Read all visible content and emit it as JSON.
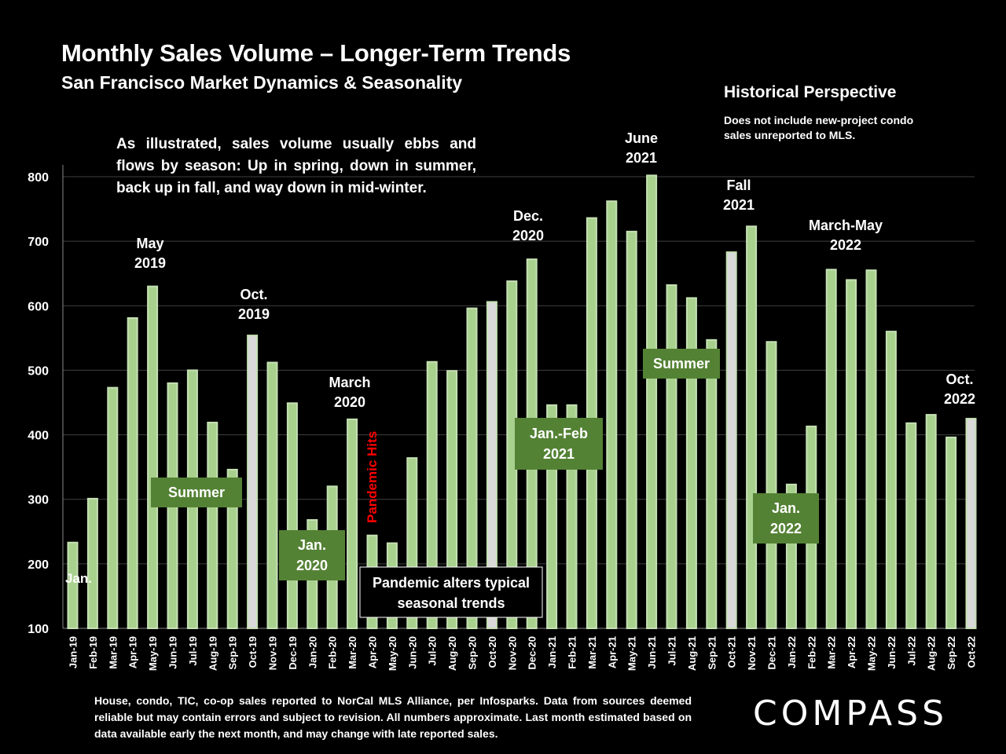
{
  "header": {
    "title": "Monthly Sales Volume – Longer-Term Trends",
    "subtitle": "San Francisco Market Dynamics & Seasonality"
  },
  "historical": {
    "title": "Historical Perspective",
    "note": "Does not include new-project condo sales unreported to MLS."
  },
  "intro_text": "As illustrated, sales volume usually ebbs and flows by season: Up in spring, down in summer, back up in fall, and way down in mid-winter.",
  "footnote": "House, condo, TIC, co-op sales reported to NorCal MLS Alliance, per Infosparks. Data from sources deemed reliable but may contain errors and subject to revision. All numbers approximate. Last month estimated based on data available early the next month, and may change with late reported sales.",
  "brand": {
    "logo_text": "COMPASS"
  },
  "colors": {
    "bar": "#a9d18e",
    "bar_highlight": "#d9d9d9",
    "bar_edge": "#c5e0b4",
    "callout_box": "#548235",
    "pandemic_text": "#ff0000",
    "grid": "#404040"
  },
  "chart_data": {
    "type": "bar",
    "categories": [
      "Jan-19",
      "Feb-19",
      "Mar-19",
      "Apr-19",
      "May-19",
      "Jun-19",
      "Jul-19",
      "Aug-19",
      "Sep-19",
      "Oct-19",
      "Nov-19",
      "Dec-19",
      "Jan-20",
      "Feb-20",
      "Mar-20",
      "Apr-20",
      "May-20",
      "Jun-20",
      "Jul-20",
      "Aug-20",
      "Sep-20",
      "Oct-20",
      "Nov-20",
      "Dec-20",
      "Jan-21",
      "Feb-21",
      "Mar-21",
      "Apr-21",
      "May-21",
      "Jun-21",
      "Jul-21",
      "Aug-21",
      "Sep-21",
      "Oct-21",
      "Nov-21",
      "Dec-21",
      "Jan-22",
      "Feb-22",
      "Mar-22",
      "Apr-22",
      "May-22",
      "Jun-22",
      "Jul-22",
      "Aug-22",
      "Sep-22",
      "Oct-22"
    ],
    "values": [
      233,
      301,
      473,
      581,
      630,
      480,
      500,
      419,
      346,
      554,
      512,
      449,
      268,
      320,
      424,
      244,
      232,
      364,
      513,
      499,
      596,
      606,
      638,
      672,
      446,
      446,
      736,
      762,
      715,
      802,
      632,
      612,
      547,
      683,
      723,
      544,
      323,
      413,
      656,
      640,
      655,
      560,
      418,
      431,
      396,
      425
    ],
    "highlighted": [
      9,
      21,
      33,
      45
    ],
    "ylim": [
      100,
      800
    ],
    "yticks": [
      100,
      200,
      300,
      400,
      500,
      600,
      700,
      800
    ],
    "grid": true,
    "annotations": {
      "jan19": "Jan.",
      "may19": [
        "May",
        "2019"
      ],
      "summer19": "Summer",
      "oct19": [
        "Oct.",
        "2019"
      ],
      "jan20": [
        "Jan.",
        "2020"
      ],
      "mar20": [
        "March",
        "2020"
      ],
      "pandemic_hits": "Pandemic Hits",
      "pandemic_alters": [
        "Pandemic alters typical",
        "seasonal trends"
      ],
      "dec20": [
        "Dec.",
        "2020"
      ],
      "janfeb21": [
        "Jan.-Feb",
        "2021"
      ],
      "jun21": [
        "June",
        "2021"
      ],
      "summer21": "Summer",
      "fall21": [
        "Fall",
        "2021"
      ],
      "jan22": [
        "Jan.",
        "2022"
      ],
      "marmay22": [
        "March-May",
        "2022"
      ],
      "oct22": [
        "Oct.",
        "2022"
      ]
    }
  }
}
